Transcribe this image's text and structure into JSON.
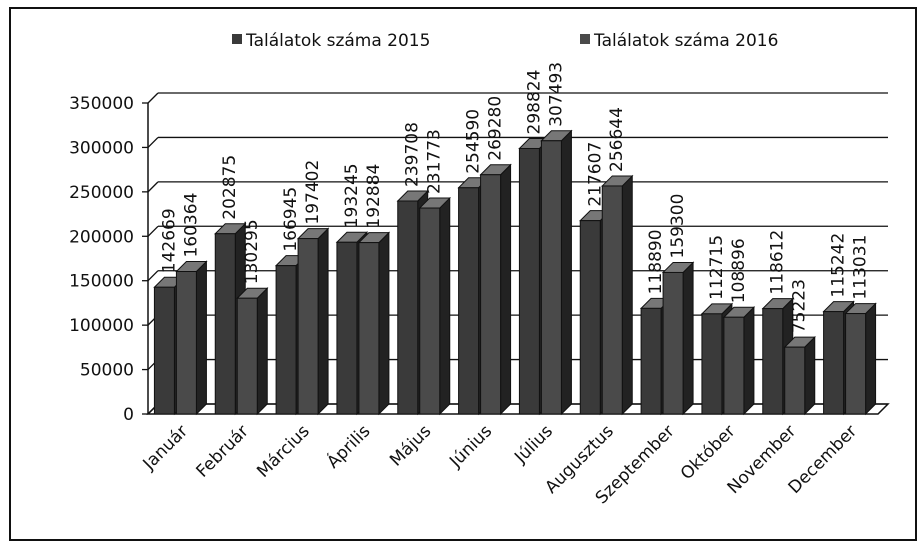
{
  "chart_data": {
    "type": "bar",
    "categories": [
      "Január",
      "Február",
      "Március",
      "Április",
      "Május",
      "Június",
      "Július",
      "Augusztus",
      "Szeptember",
      "Október",
      "November",
      "December"
    ],
    "series": [
      {
        "name": "Találatok száma 2015",
        "color": "#3a3a3a",
        "values": [
          142669,
          202875,
          166945,
          193245,
          239708,
          254590,
          298824,
          217607,
          118890,
          112715,
          118612,
          115242
        ]
      },
      {
        "name": "Találatok száma 2016",
        "color": "#4a4a4a",
        "values": [
          160364,
          130295,
          197402,
          192884,
          231773,
          269280,
          307493,
          256644,
          159300,
          108896,
          75223,
          113031
        ]
      }
    ],
    "ylim": [
      0,
      350000
    ],
    "yticks": [
      0,
      50000,
      100000,
      150000,
      200000,
      250000,
      300000,
      350000
    ],
    "grid": true,
    "legend": "top"
  }
}
